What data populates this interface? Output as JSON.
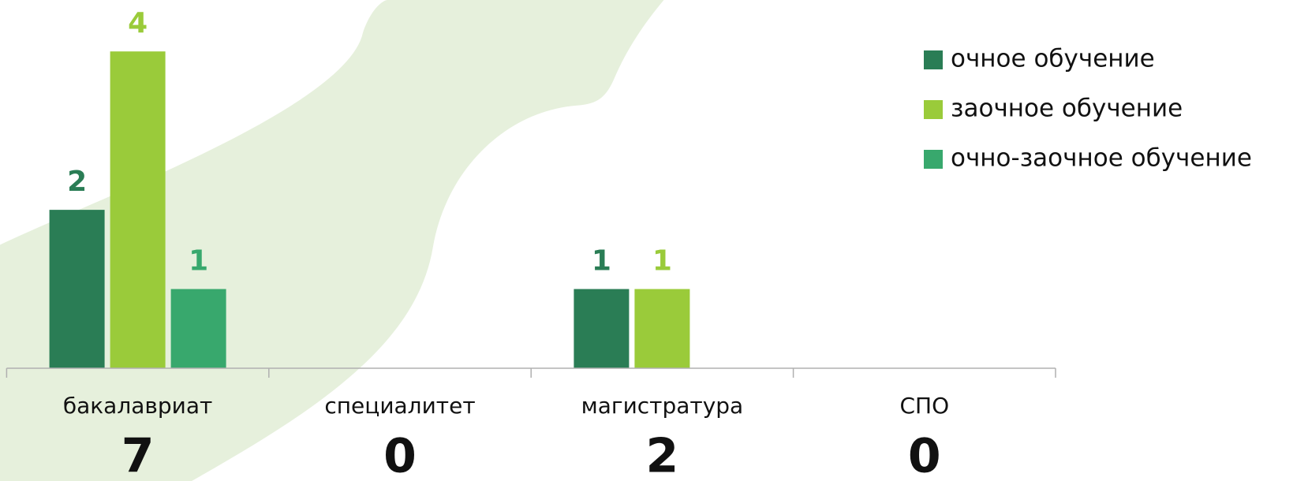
{
  "chart_data": {
    "type": "bar",
    "categories": [
      "бакалавриат",
      "специалитет",
      "магистратура",
      "СПО"
    ],
    "totals": [
      7,
      0,
      2,
      0
    ],
    "series": [
      {
        "name": "очное обучение",
        "color": "#2a7d55",
        "values": [
          2,
          0,
          1,
          0
        ]
      },
      {
        "name": "заочное обучение",
        "color": "#9acb3a",
        "values": [
          4,
          0,
          1,
          0
        ]
      },
      {
        "name": "очно-заочное обучение",
        "color": "#38a86d",
        "values": [
          1,
          0,
          0,
          0
        ]
      }
    ],
    "ylim": [
      0,
      4.5
    ],
    "legend": "top-right"
  }
}
